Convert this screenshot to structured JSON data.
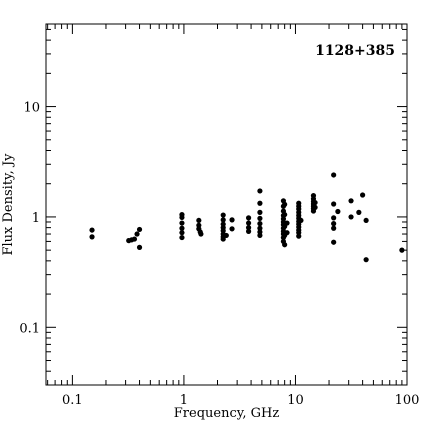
{
  "chart_data": {
    "type": "scatter",
    "title": "1128+385",
    "xlabel": "Frequency, GHz",
    "ylabel": "Flux Density, Jy",
    "xscale": "log",
    "yscale": "log",
    "xlim": [
      0.058,
      100
    ],
    "ylim": [
      0.03,
      56
    ],
    "xticks": [
      0.1,
      1,
      10,
      100
    ],
    "xtick_labels": [
      "0.1",
      "1",
      "10",
      "100"
    ],
    "yticks": [
      0.1,
      1,
      10
    ],
    "ytick_labels": [
      "0.1",
      "1",
      "10"
    ],
    "grid": false,
    "legend": "none",
    "marker_color": "#000000",
    "points": [
      [
        0.15,
        0.76
      ],
      [
        0.15,
        0.66
      ],
      [
        0.32,
        0.61
      ],
      [
        0.34,
        0.62
      ],
      [
        0.36,
        0.63
      ],
      [
        0.38,
        0.7
      ],
      [
        0.4,
        0.77
      ],
      [
        0.4,
        0.53
      ],
      [
        0.96,
        1.05
      ],
      [
        0.96,
        0.99
      ],
      [
        0.96,
        0.88
      ],
      [
        0.96,
        0.79
      ],
      [
        0.96,
        0.72
      ],
      [
        0.96,
        0.65
      ],
      [
        1.36,
        0.93
      ],
      [
        1.36,
        0.84
      ],
      [
        1.36,
        0.78
      ],
      [
        1.4,
        0.73
      ],
      [
        1.42,
        0.7
      ],
      [
        2.25,
        1.04
      ],
      [
        2.25,
        0.94
      ],
      [
        2.25,
        0.86
      ],
      [
        2.25,
        0.8
      ],
      [
        2.25,
        0.75
      ],
      [
        2.25,
        0.7
      ],
      [
        2.25,
        0.66
      ],
      [
        2.25,
        0.63
      ],
      [
        2.4,
        0.68
      ],
      [
        2.7,
        0.94
      ],
      [
        2.7,
        0.78
      ],
      [
        3.8,
        0.98
      ],
      [
        3.8,
        0.88
      ],
      [
        3.8,
        0.8
      ],
      [
        3.8,
        0.74
      ],
      [
        4.8,
        1.72
      ],
      [
        4.8,
        1.33
      ],
      [
        4.8,
        1.1
      ],
      [
        4.8,
        0.97
      ],
      [
        4.8,
        0.87
      ],
      [
        4.8,
        0.79
      ],
      [
        4.8,
        0.73
      ],
      [
        4.8,
        0.68
      ],
      [
        7.8,
        1.4
      ],
      [
        7.8,
        1.25
      ],
      [
        7.8,
        1.13
      ],
      [
        7.8,
        1.03
      ],
      [
        7.8,
        0.96
      ],
      [
        7.8,
        0.9
      ],
      [
        7.8,
        0.85
      ],
      [
        7.8,
        0.79
      ],
      [
        7.8,
        0.74
      ],
      [
        7.8,
        0.7
      ],
      [
        7.8,
        0.65
      ],
      [
        7.8,
        0.6
      ],
      [
        8.0,
        1.3
      ],
      [
        8.0,
        1.05
      ],
      [
        8.0,
        0.82
      ],
      [
        8.0,
        0.68
      ],
      [
        8.0,
        0.56
      ],
      [
        8.4,
        0.88
      ],
      [
        8.4,
        0.72
      ],
      [
        10.7,
        1.33
      ],
      [
        10.7,
        1.25
      ],
      [
        10.7,
        1.18
      ],
      [
        10.7,
        1.1
      ],
      [
        10.7,
        1.03
      ],
      [
        10.7,
        0.97
      ],
      [
        10.7,
        0.91
      ],
      [
        10.7,
        0.86
      ],
      [
        10.7,
        0.81
      ],
      [
        10.7,
        0.76
      ],
      [
        10.7,
        0.72
      ],
      [
        10.7,
        0.67
      ],
      [
        11.2,
        0.93
      ],
      [
        14.5,
        1.56
      ],
      [
        14.5,
        1.46
      ],
      [
        14.5,
        1.38
      ],
      [
        14.5,
        1.31
      ],
      [
        14.5,
        1.25
      ],
      [
        14.5,
        1.19
      ],
      [
        14.5,
        1.13
      ],
      [
        15.0,
        1.35
      ],
      [
        15.0,
        1.22
      ],
      [
        22.0,
        2.4
      ],
      [
        22.0,
        1.31
      ],
      [
        22.0,
        0.98
      ],
      [
        22.0,
        0.87
      ],
      [
        22.0,
        0.79
      ],
      [
        22.0,
        0.59
      ],
      [
        24.0,
        1.12
      ],
      [
        31.5,
        1.4
      ],
      [
        31.5,
        1.0
      ],
      [
        37.0,
        1.1
      ],
      [
        40.0,
        1.58
      ],
      [
        43.0,
        0.93
      ],
      [
        43.0,
        0.41
      ],
      [
        90.0,
        0.5
      ]
    ]
  }
}
